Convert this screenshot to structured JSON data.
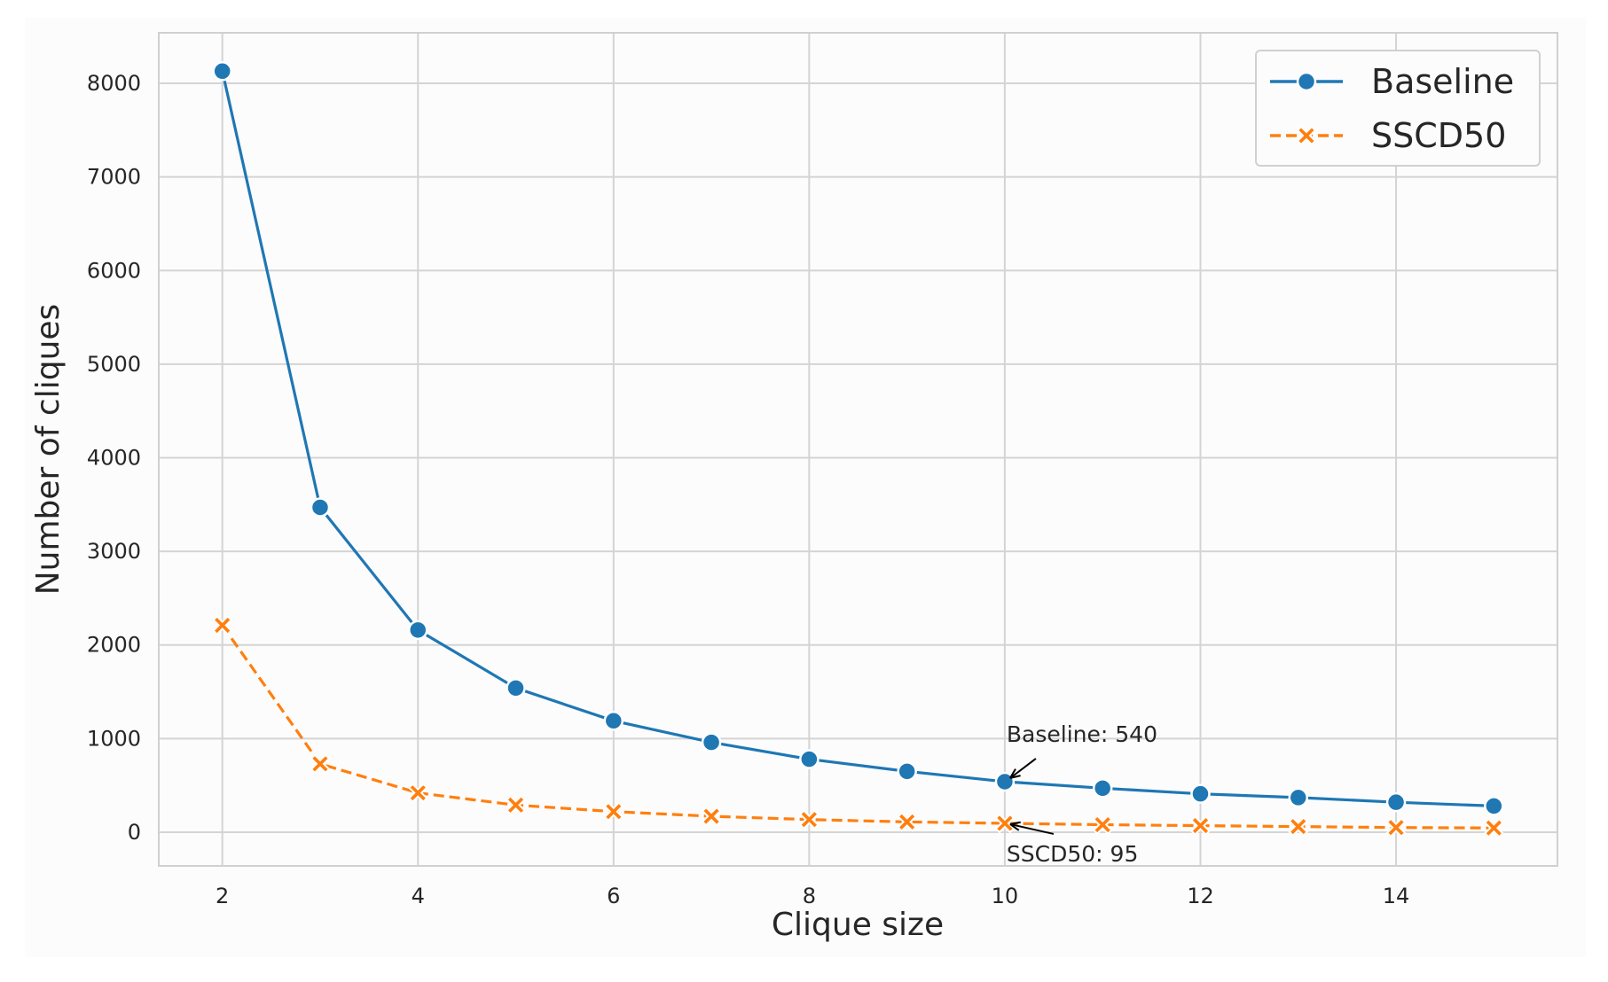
{
  "chart_data": {
    "type": "line",
    "x_label": "Clique size",
    "y_label": "Number of cliques",
    "x": [
      2,
      3,
      4,
      5,
      6,
      7,
      8,
      9,
      10,
      11,
      12,
      13,
      14,
      15
    ],
    "series": [
      {
        "name": "Baseline",
        "color": "#1f77b4",
        "marker": "circle",
        "dashed": false,
        "values": [
          8130,
          3470,
          2160,
          1540,
          1190,
          960,
          780,
          650,
          540,
          470,
          410,
          370,
          320,
          280
        ]
      },
      {
        "name": "SSCD50",
        "color": "#ff7f0e",
        "marker": "x",
        "dashed": true,
        "values": [
          2210,
          730,
          420,
          290,
          220,
          170,
          135,
          110,
          95,
          80,
          70,
          60,
          50,
          45
        ]
      }
    ],
    "xlim": [
      1.35,
      15.65
    ],
    "ylim": [
      -360,
      8540
    ],
    "xticks": [
      2,
      4,
      6,
      8,
      10,
      12,
      14
    ],
    "yticks": [
      0,
      1000,
      2000,
      3000,
      4000,
      5000,
      6000,
      7000,
      8000
    ],
    "grid": true,
    "legend": "upper right",
    "annotations": [
      {
        "text": "Baseline: 540",
        "x": 10,
        "y": 540
      },
      {
        "text": "SSCD50: 95",
        "x": 10,
        "y": 95
      }
    ]
  }
}
